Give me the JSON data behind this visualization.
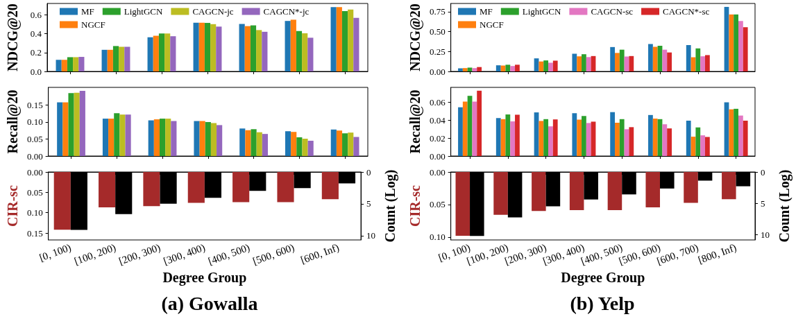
{
  "chart_data": [
    {
      "type": "bar",
      "ylabel": "NDCG@20",
      "categories": [
        null,
        null,
        null,
        null,
        null,
        null,
        null
      ],
      "tick_labels": "y",
      "legend": "top",
      "ylim": [
        0,
        0.72
      ],
      "yticks": [
        {
          "value": 0,
          "label": "0.0"
        },
        0.2,
        0.4,
        0.6
      ],
      "series": [
        {
          "name": "MF",
          "color": "#1f77b4",
          "values": [
            0.123,
            0.229,
            0.362,
            0.516,
            0.503,
            0.535,
            0.681
          ]
        },
        {
          "name": "NGCF",
          "color": "#ff7f0e",
          "values": [
            0.123,
            0.229,
            0.378,
            0.516,
            0.48,
            0.548,
            0.681
          ]
        },
        {
          "name": "LightGCN",
          "color": "#2ca02c",
          "values": [
            0.151,
            0.269,
            0.402,
            0.514,
            0.488,
            0.428,
            0.639
          ]
        },
        {
          "name": "CAGCN-jc",
          "color": "#bcbd22",
          "values": [
            0.151,
            0.261,
            0.402,
            0.501,
            0.438,
            0.404,
            0.655
          ]
        },
        {
          "name": "CAGCN*-jc",
          "color": "#9467bd",
          "values": [
            0.154,
            0.261,
            0.373,
            0.475,
            0.42,
            0.357,
            0.568
          ]
        }
      ]
    },
    {
      "type": "bar",
      "ylabel": "Recall@20",
      "categories": [
        null,
        null,
        null,
        null,
        null,
        null,
        null
      ],
      "tick_labels": "y",
      "ylim": [
        0,
        0.202
      ],
      "yticks": [
        {
          "value": 0,
          "label": "0.00"
        },
        0.05,
        {
          "value": 0.1,
          "label": "0.10"
        },
        0.15
      ],
      "series": [
        {
          "color": "#1f77b4",
          "values": [
            0.158,
            0.11,
            0.105,
            0.103,
            0.081,
            0.073,
            0.078
          ]
        },
        {
          "color": "#ff7f0e",
          "values": [
            0.158,
            0.11,
            0.108,
            0.103,
            0.076,
            0.071,
            0.075
          ]
        },
        {
          "color": "#2ca02c",
          "values": [
            0.185,
            0.126,
            0.11,
            0.1,
            0.079,
            0.055,
            0.067
          ]
        },
        {
          "color": "#bcbd22",
          "values": [
            0.186,
            0.122,
            0.11,
            0.097,
            0.07,
            0.051,
            0.069
          ]
        },
        {
          "color": "#9467bd",
          "values": [
            0.192,
            0.122,
            0.103,
            0.091,
            0.065,
            0.045,
            0.056
          ]
        }
      ]
    },
    {
      "type": "bar",
      "title": "(a) Gowalla",
      "xlabel": "Degree Group",
      "ylabel": "CIR-sc",
      "y2label": "Count (Log)",
      "categories": [
        "[0, 100)",
        "[100, 200)",
        "[200, 300)",
        "[300, 400)",
        "[400, 500)",
        "[500, 600)",
        "[600, Inf)"
      ],
      "ylim": [
        0.167,
        0
      ],
      "yticks": [
        {
          "value": 0,
          "label": "0.00"
        },
        0.05,
        {
          "value": 0.1,
          "label": "0.10"
        },
        0.15
      ],
      "y2lim": [
        10.66,
        0
      ],
      "y2ticks": [
        0,
        5,
        10
      ],
      "series": [
        {
          "color": "#a52a2a",
          "values": [
            0.142,
            0.087,
            0.084,
            0.076,
            0.074,
            0.074,
            0.067
          ]
        },
        {
          "color": "#000000",
          "axis": "y2",
          "values": [
            9.07,
            6.61,
            4.98,
            4.05,
            2.96,
            2.53,
            1.79
          ]
        }
      ]
    },
    {
      "type": "bar",
      "ylabel": "NDCG@20",
      "categories": [
        null,
        null,
        null,
        null,
        null,
        null,
        null,
        null
      ],
      "tick_labels": "y",
      "legend": "top",
      "ylim": [
        0,
        0.853
      ],
      "yticks": [
        {
          "value": 0,
          "label": "0.00"
        },
        0.25,
        {
          "value": 0.5,
          "label": "0.50"
        },
        0.75
      ],
      "series": [
        {
          "name": "MF",
          "color": "#1f77b4",
          "values": [
            0.039,
            0.077,
            0.164,
            0.222,
            0.306,
            0.344,
            0.331,
            0.81
          ]
        },
        {
          "name": "NGCF",
          "color": "#ff7f0e",
          "values": [
            0.042,
            0.074,
            0.125,
            0.19,
            0.232,
            0.309,
            0.178,
            0.715
          ]
        },
        {
          "name": "LightGCN",
          "color": "#2ca02c",
          "values": [
            0.048,
            0.084,
            0.138,
            0.216,
            0.273,
            0.322,
            0.289,
            0.715
          ]
        },
        {
          "name": "CAGCN-sc",
          "color": "#e377c2",
          "values": [
            0.042,
            0.068,
            0.109,
            0.18,
            0.187,
            0.273,
            0.19,
            0.633
          ]
        },
        {
          "name": "CAGCN*-sc",
          "color": "#d62728",
          "values": [
            0.055,
            0.084,
            0.135,
            0.193,
            0.193,
            0.238,
            0.205,
            0.555
          ]
        }
      ]
    },
    {
      "type": "bar",
      "ylabel": "Recall@20",
      "categories": [
        null,
        null,
        null,
        null,
        null,
        null,
        null,
        null
      ],
      "tick_labels": "y",
      "ylim": [
        0,
        0.0763
      ],
      "yticks": [
        {
          "value": 0,
          "label": "0.00"
        },
        0.02,
        0.04,
        0.06
      ],
      "series": [
        {
          "color": "#1f77b4",
          "values": [
            0.0542,
            0.0422,
            0.0485,
            0.0476,
            0.0488,
            0.0456,
            0.0393,
            0.0597
          ]
        },
        {
          "color": "#ff7f0e",
          "values": [
            0.0605,
            0.041,
            0.039,
            0.0405,
            0.037,
            0.0416,
            0.0215,
            0.0519
          ]
        },
        {
          "color": "#2ca02c",
          "values": [
            0.0669,
            0.0462,
            0.041,
            0.0445,
            0.041,
            0.041,
            0.0318,
            0.0525
          ]
        },
        {
          "color": "#e377c2",
          "values": [
            0.0605,
            0.0385,
            0.033,
            0.0367,
            0.0298,
            0.0353,
            0.023,
            0.045
          ]
        },
        {
          "color": "#d62728",
          "values": [
            0.0726,
            0.0459,
            0.0407,
            0.0382,
            0.0321,
            0.0307,
            0.0212,
            0.0393
          ]
        }
      ]
    },
    {
      "type": "bar",
      "title": "(b) Yelp",
      "xlabel": "Degree Group",
      "ylabel": "CIR-sc",
      "y2label": "Count (Log)",
      "categories": [
        "[0, 100)",
        "[100, 200)",
        "[200, 300)",
        "[300, 400)",
        "[400, 500)",
        "[500, 600)",
        "[600, 700)",
        "[800, Inf)"
      ],
      "ylim": [
        0.1043,
        0
      ],
      "yticks": [
        {
          "value": 0,
          "label": "0.00"
        },
        0.05,
        {
          "value": 0.1,
          "label": "0.10"
        }
      ],
      "y2lim": [
        10.85,
        0
      ],
      "y2ticks": [
        0,
        5,
        10
      ],
      "series": [
        {
          "color": "#a52a2a",
          "values": [
            0.098,
            0.0656,
            0.0598,
            0.0586,
            0.0586,
            0.0543,
            0.0473,
            0.0418
          ]
        },
        {
          "color": "#000000",
          "axis": "y2",
          "values": [
            10.2,
            7.24,
            5.49,
            4.39,
            3.58,
            2.64,
            1.38,
            2.28
          ]
        }
      ]
    }
  ]
}
